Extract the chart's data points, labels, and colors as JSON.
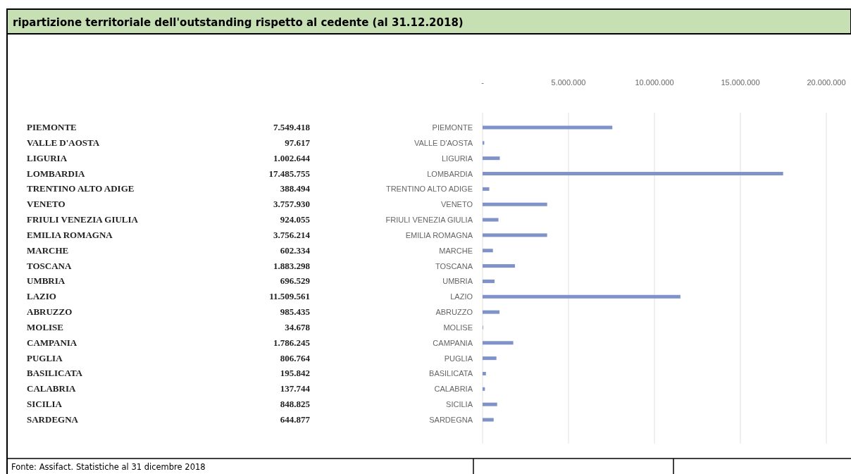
{
  "chart_data": {
    "type": "bar",
    "orientation": "horizontal",
    "title": "ripartizione territoriale dell'outstanding rispetto al cedente (al 31.12.2018)",
    "categories": [
      "PIEMONTE",
      "VALLE D'AOSTA",
      "LIGURIA",
      "LOMBARDIA",
      "TRENTINO ALTO ADIGE",
      "VENETO",
      "FRIULI VENEZIA GIULIA",
      "EMILIA ROMAGNA",
      "MARCHE",
      "TOSCANA",
      "UMBRIA",
      "LAZIO",
      "ABRUZZO",
      "MOLISE",
      "CAMPANIA",
      "PUGLIA",
      "BASILICATA",
      "CALABRIA",
      "SICILIA",
      "SARDEGNA"
    ],
    "values": [
      7549418,
      97617,
      1002644,
      17485755,
      388494,
      3757930,
      924055,
      3756214,
      602334,
      1883298,
      696529,
      11509561,
      985435,
      34678,
      1786245,
      806764,
      195842,
      137744,
      848825,
      644877
    ],
    "value_labels": [
      "7.549.418",
      "97.617",
      "1.002.644",
      "17.485.755",
      "388.494",
      "3.757.930",
      "924.055",
      "3.756.214",
      "602.334",
      "1.883.298",
      "696.529",
      "11.509.561",
      "985.435",
      "34.678",
      "1.786.245",
      "806.764",
      "195.842",
      "137.744",
      "848.825",
      "644.877"
    ],
    "color": "#8093c8",
    "xlim": [
      0,
      20000000
    ],
    "xticks": [
      {
        "value": 0,
        "label": "-"
      },
      {
        "value": 5000000,
        "label": "5.000.000"
      },
      {
        "value": 10000000,
        "label": "10.000.000"
      },
      {
        "value": 15000000,
        "label": "15.000.000"
      },
      {
        "value": 20000000,
        "label": "20.000.000"
      }
    ],
    "grid": "x",
    "annotations": [
      "Fonte: Assifact. Statistiche al 31 dicembre 2018"
    ]
  }
}
